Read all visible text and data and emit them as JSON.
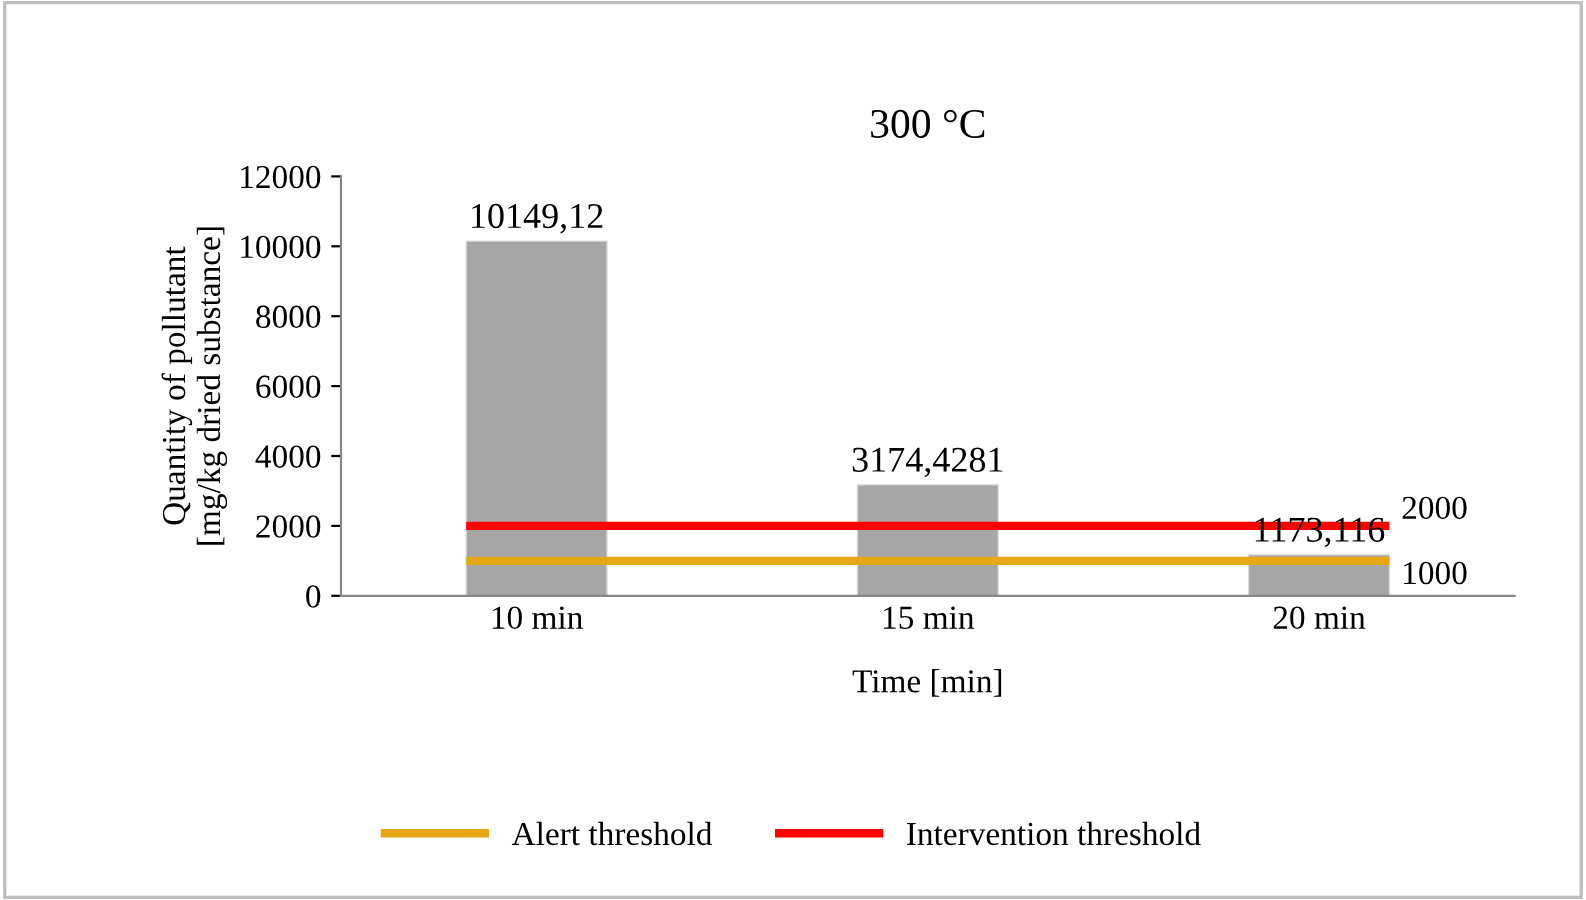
{
  "chart_data": {
    "type": "bar",
    "title": "300 °C",
    "xlabel": "Time [min]",
    "ylabel": "Quantity of pollutant\n[mg/kg dried substance]",
    "categories": [
      "10 min",
      "15 min",
      "20 min"
    ],
    "values": [
      10149.12,
      3174.4281,
      1173.116
    ],
    "value_labels": [
      "10149,12",
      "3174,4281",
      "1173,116"
    ],
    "color": "#a6a6a6",
    "ylim": [
      0,
      12000
    ],
    "yticks": [
      0,
      2000,
      4000,
      6000,
      8000,
      10000,
      12000
    ],
    "grid": false,
    "legend": "bottom",
    "annotations": [
      {
        "text": "2000",
        "x": "20 min",
        "y": 2000
      },
      {
        "text": "1000",
        "x": "20 min",
        "y": 1000
      }
    ],
    "ref_lines": [
      {
        "axis": "y",
        "value": 1000,
        "label": "Alert threshold",
        "color": "#e6a817"
      },
      {
        "axis": "y",
        "value": 2000,
        "label": "Intervention threshold",
        "color": "#ff0000"
      }
    ]
  }
}
